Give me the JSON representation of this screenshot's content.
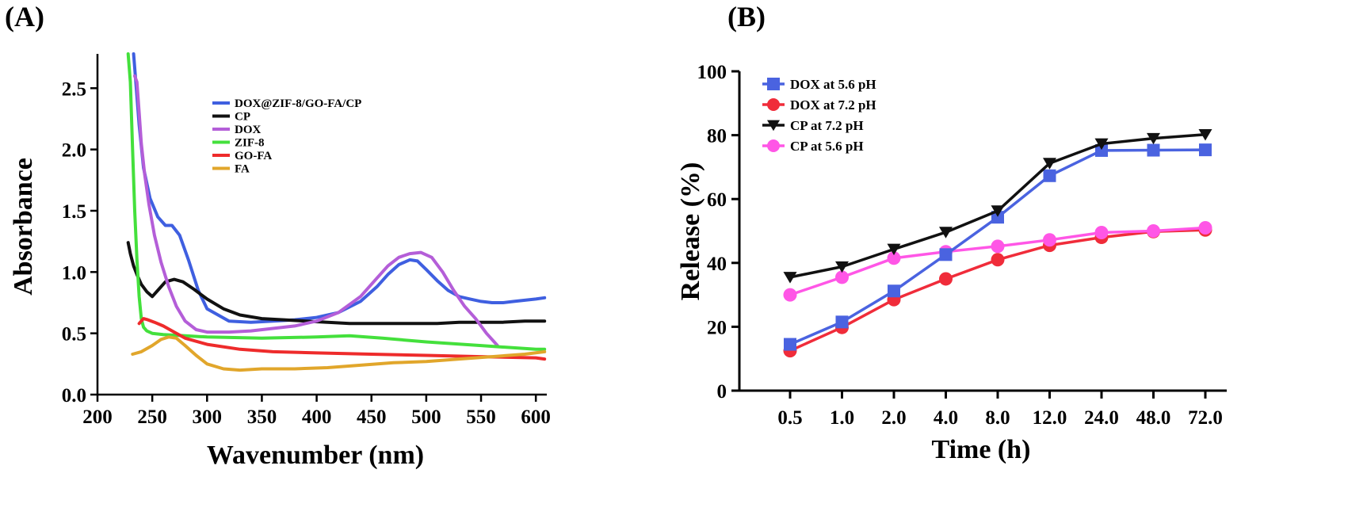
{
  "chart_data": [
    {
      "panel": "(A)",
      "type": "line",
      "xlabel": "Wavenumber (nm)",
      "ylabel": "Absorbance",
      "xlim": [
        200,
        610
      ],
      "ylim": [
        0.0,
        2.78
      ],
      "xticks": [
        "200",
        "250",
        "300",
        "350",
        "400",
        "450",
        "500",
        "550",
        "600"
      ],
      "yticks": [
        "0.0",
        "0.5",
        "1.0",
        "1.5",
        "2.0",
        "2.5"
      ],
      "legend_position": "top-center",
      "series": [
        {
          "name": "DOX@ZIF-8/GO-FA/CP",
          "color": "#3f5fe0",
          "x": [
            233,
            235,
            238,
            242,
            248,
            255,
            262,
            268,
            275,
            283,
            292,
            300,
            320,
            340,
            360,
            380,
            400,
            420,
            440,
            455,
            465,
            475,
            485,
            492,
            500,
            510,
            520,
            530,
            540,
            550,
            560,
            570,
            580,
            590,
            600,
            608
          ],
          "y": [
            2.78,
            2.55,
            2.2,
            1.85,
            1.6,
            1.45,
            1.38,
            1.38,
            1.3,
            1.1,
            0.85,
            0.7,
            0.6,
            0.59,
            0.6,
            0.61,
            0.63,
            0.67,
            0.76,
            0.88,
            0.98,
            1.06,
            1.1,
            1.09,
            1.02,
            0.93,
            0.85,
            0.8,
            0.78,
            0.76,
            0.75,
            0.75,
            0.76,
            0.77,
            0.78,
            0.79
          ]
        },
        {
          "name": "CP",
          "color": "#111111",
          "x": [
            228,
            230,
            233,
            236,
            240,
            245,
            250,
            255,
            262,
            270,
            278,
            288,
            300,
            315,
            330,
            350,
            370,
            390,
            410,
            430,
            450,
            470,
            490,
            510,
            530,
            550,
            570,
            590,
            608
          ],
          "y": [
            1.24,
            1.15,
            1.05,
            0.98,
            0.9,
            0.84,
            0.8,
            0.85,
            0.92,
            0.94,
            0.92,
            0.86,
            0.78,
            0.7,
            0.65,
            0.62,
            0.61,
            0.6,
            0.59,
            0.58,
            0.58,
            0.58,
            0.58,
            0.58,
            0.59,
            0.59,
            0.59,
            0.6,
            0.6
          ]
        },
        {
          "name": "DOX",
          "color": "#b45ed8",
          "x": [
            234,
            236,
            238,
            240,
            243,
            247,
            252,
            258,
            265,
            272,
            280,
            290,
            300,
            320,
            340,
            360,
            380,
            400,
            420,
            440,
            455,
            465,
            475,
            485,
            495,
            505,
            515,
            525,
            535,
            545,
            555,
            565
          ],
          "y": [
            2.6,
            2.55,
            2.3,
            2.05,
            1.8,
            1.55,
            1.3,
            1.08,
            0.88,
            0.72,
            0.6,
            0.53,
            0.51,
            0.51,
            0.52,
            0.54,
            0.56,
            0.6,
            0.67,
            0.8,
            0.95,
            1.05,
            1.12,
            1.15,
            1.16,
            1.12,
            1.0,
            0.85,
            0.72,
            0.62,
            0.5,
            0.4
          ]
        },
        {
          "name": "ZIF-8",
          "color": "#44e03c",
          "x": [
            228,
            230,
            232,
            234,
            236,
            238,
            240,
            242,
            245,
            250,
            260,
            280,
            300,
            350,
            400,
            430,
            460,
            500,
            550,
            600,
            608
          ],
          "y": [
            2.78,
            2.55,
            2.0,
            1.5,
            1.1,
            0.8,
            0.62,
            0.55,
            0.52,
            0.5,
            0.49,
            0.48,
            0.47,
            0.46,
            0.47,
            0.48,
            0.46,
            0.43,
            0.4,
            0.37,
            0.37
          ]
        },
        {
          "name": "GO-FA",
          "color": "#ee2b2b",
          "x": [
            238,
            242,
            246,
            252,
            260,
            270,
            280,
            300,
            330,
            360,
            400,
            450,
            500,
            550,
            600,
            608
          ],
          "y": [
            0.58,
            0.62,
            0.61,
            0.59,
            0.56,
            0.51,
            0.46,
            0.41,
            0.37,
            0.35,
            0.34,
            0.33,
            0.32,
            0.31,
            0.3,
            0.29
          ]
        },
        {
          "name": "FA",
          "color": "#e1a62b",
          "x": [
            232,
            240,
            250,
            258,
            265,
            272,
            280,
            290,
            300,
            315,
            330,
            350,
            380,
            410,
            440,
            470,
            500,
            530,
            560,
            590,
            608
          ],
          "y": [
            0.33,
            0.35,
            0.4,
            0.45,
            0.47,
            0.46,
            0.4,
            0.32,
            0.25,
            0.21,
            0.2,
            0.21,
            0.21,
            0.22,
            0.24,
            0.26,
            0.27,
            0.29,
            0.31,
            0.33,
            0.35
          ]
        }
      ]
    },
    {
      "panel": "(B)",
      "type": "line",
      "xlabel": "Time (h)",
      "ylabel": "Release (%)",
      "categories": [
        "0.5",
        "1.0",
        "2.0",
        "4.0",
        "8.0",
        "12.0",
        "24.0",
        "48.0",
        "72.0"
      ],
      "ylim": [
        0,
        100
      ],
      "yticks": [
        "0",
        "20",
        "40",
        "60",
        "80",
        "100"
      ],
      "legend_position": "top-left",
      "series": [
        {
          "name": "DOX at 5.6 pH",
          "color": "#4a63e0",
          "marker": "square",
          "values": [
            14.5,
            21.5,
            31.2,
            42.6,
            54.3,
            67.3,
            75.2,
            75.3,
            75.4
          ]
        },
        {
          "name": "DOX at 7.2 pH",
          "color": "#f02c3a",
          "marker": "circle",
          "values": [
            12.5,
            19.8,
            28.5,
            35.0,
            41.0,
            45.5,
            48.0,
            49.8,
            50.3
          ]
        },
        {
          "name": "CP at 7.2 pH",
          "color": "#111111",
          "marker": "triangle-down",
          "values": [
            35.5,
            38.8,
            44.3,
            49.6,
            56.3,
            71.2,
            77.3,
            79.0,
            80.2
          ]
        },
        {
          "name": "CP at 5.6 pH",
          "color": "#ff56e6",
          "marker": "circle",
          "values": [
            30.0,
            35.5,
            41.5,
            43.5,
            45.2,
            47.2,
            49.5,
            50.0,
            51.0
          ]
        }
      ]
    }
  ]
}
